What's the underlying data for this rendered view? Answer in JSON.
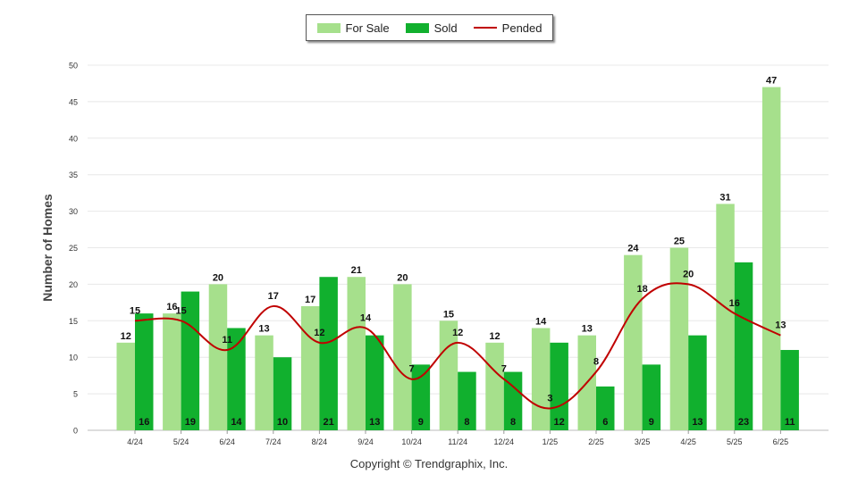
{
  "legend": {
    "for_sale": "For Sale",
    "sold": "Sold",
    "pended": "Pended"
  },
  "copyright": "Copyright © Trendgraphix, Inc.",
  "colors": {
    "for_sale": "#a6e08c",
    "sold": "#11b02e",
    "pended": "#c00000"
  },
  "chart_data": {
    "type": "bar",
    "ylabel": "Number of Homes",
    "xlabel": "",
    "ylim": [
      0,
      50
    ],
    "yticks": [
      0,
      5,
      10,
      15,
      20,
      25,
      30,
      35,
      40,
      45,
      50
    ],
    "grid": true,
    "legend_position": "top-center",
    "categories": [
      "4/24",
      "5/24",
      "6/24",
      "7/24",
      "8/24",
      "9/24",
      "10/24",
      "11/24",
      "12/24",
      "1/25",
      "2/25",
      "3/25",
      "4/25",
      "5/25",
      "6/25"
    ],
    "series": [
      {
        "name": "For Sale",
        "type": "bar",
        "values": [
          12,
          16,
          20,
          13,
          17,
          21,
          20,
          15,
          12,
          14,
          13,
          24,
          25,
          31,
          47
        ]
      },
      {
        "name": "Sold",
        "type": "bar",
        "values": [
          16,
          19,
          14,
          10,
          21,
          13,
          9,
          8,
          8,
          12,
          6,
          9,
          13,
          23,
          11
        ]
      },
      {
        "name": "Pended",
        "type": "line",
        "values": [
          15,
          15,
          11,
          17,
          12,
          14,
          7,
          12,
          7,
          3,
          8,
          18,
          20,
          16,
          13
        ]
      }
    ]
  }
}
